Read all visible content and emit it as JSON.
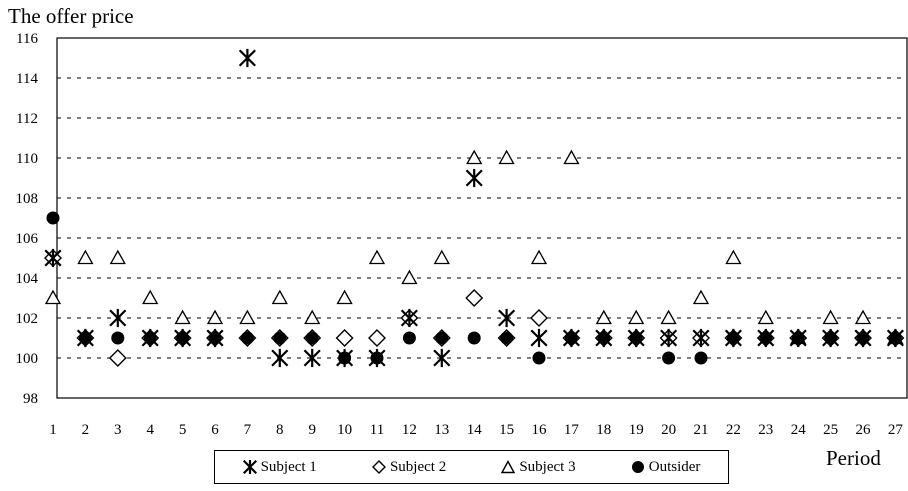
{
  "chart_data": {
    "type": "scatter",
    "title": "",
    "ylabel": "The offer price",
    "xlabel": "Period",
    "x": [
      1,
      2,
      3,
      4,
      5,
      6,
      7,
      8,
      9,
      10,
      11,
      12,
      13,
      14,
      15,
      16,
      17,
      18,
      19,
      20,
      21,
      22,
      23,
      24,
      25,
      26,
      27
    ],
    "xticks": [
      "1",
      "2",
      "3",
      "4",
      "5",
      "6",
      "7",
      "8",
      "9",
      "10",
      "11",
      "12",
      "13",
      "14",
      "15",
      "16",
      "17",
      "18",
      "19",
      "20",
      "21",
      "22",
      "23",
      "24",
      "25",
      "26",
      "27"
    ],
    "ylim": [
      98,
      116
    ],
    "yticks": [
      "98",
      "100",
      "102",
      "104",
      "106",
      "108",
      "110",
      "112",
      "114",
      "116"
    ],
    "grid": "horizontal dashed",
    "legend_position": "bottom",
    "series": [
      {
        "name": "Subject 1",
        "marker": "asterisk",
        "values": [
          105,
          101,
          102,
          101,
          101,
          101,
          115,
          100,
          100,
          100,
          100,
          102,
          100,
          109,
          102,
          101,
          101,
          101,
          101,
          101,
          101,
          101,
          101,
          101,
          101,
          101,
          101
        ]
      },
      {
        "name": "Subject 2",
        "marker": "diamond",
        "values": [
          105,
          101,
          100,
          101,
          101,
          101,
          101,
          101,
          101,
          101,
          101,
          102,
          101,
          103,
          101,
          102,
          101,
          101,
          101,
          101,
          101,
          101,
          101,
          101,
          101,
          101,
          101
        ]
      },
      {
        "name": "Subject 3",
        "marker": "triangle",
        "values": [
          103,
          105,
          105,
          103,
          102,
          102,
          102,
          103,
          102,
          103,
          105,
          104,
          105,
          110,
          110,
          105,
          110,
          102,
          102,
          102,
          103,
          105,
          102,
          101,
          102,
          102,
          101
        ]
      },
      {
        "name": "Outsider",
        "marker": "circle",
        "values": [
          107,
          101,
          101,
          101,
          101,
          101,
          101,
          101,
          101,
          100,
          100,
          101,
          101,
          101,
          101,
          100,
          101,
          101,
          101,
          100,
          100,
          101,
          101,
          101,
          101,
          101,
          101
        ]
      }
    ]
  }
}
